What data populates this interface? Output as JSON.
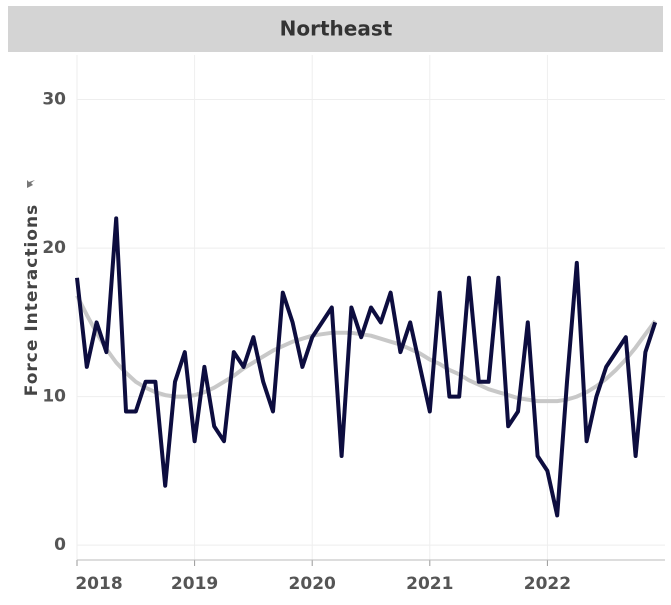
{
  "chart_data": {
    "type": "line",
    "title": "Northeast",
    "y_label": "Force Interactions",
    "x": [
      2018,
      2018.083,
      2018.167,
      2018.25,
      2018.333,
      2018.417,
      2018.5,
      2018.583,
      2018.667,
      2018.75,
      2018.833,
      2018.917,
      2019,
      2019.083,
      2019.167,
      2019.25,
      2019.333,
      2019.417,
      2019.5,
      2019.583,
      2019.667,
      2019.75,
      2019.833,
      2019.917,
      2020,
      2020.083,
      2020.167,
      2020.25,
      2020.333,
      2020.417,
      2020.5,
      2020.583,
      2020.667,
      2020.75,
      2020.833,
      2020.917,
      2021,
      2021.083,
      2021.167,
      2021.25,
      2021.333,
      2021.417,
      2021.5,
      2021.583,
      2021.667,
      2021.75,
      2021.833,
      2021.917,
      2022,
      2022.083,
      2022.167,
      2022.25,
      2022.333,
      2022.417,
      2022.5,
      2022.583,
      2022.667,
      2022.75,
      2022.833,
      2022.917
    ],
    "series": [
      {
        "color": "#c8c8c8",
        "values": [
          16.8,
          15.5,
          14.3,
          13.2,
          12.3,
          11.6,
          11.0,
          10.6,
          10.3,
          10.1,
          10.0,
          10.0,
          10.1,
          10.3,
          10.6,
          11.0,
          11.4,
          11.9,
          12.3,
          12.7,
          13.1,
          13.4,
          13.7,
          13.9,
          14.1,
          14.2,
          14.3,
          14.3,
          14.3,
          14.2,
          14.1,
          13.9,
          13.7,
          13.5,
          13.2,
          12.9,
          12.5,
          12.2,
          11.8,
          11.5,
          11.1,
          10.8,
          10.5,
          10.3,
          10.1,
          9.9,
          9.8,
          9.7,
          9.7,
          9.7,
          9.8,
          10.0,
          10.3,
          10.7,
          11.2,
          11.8,
          12.5,
          13.3,
          14.2,
          15.1
        ]
      },
      {
        "color": "#0d0d3f",
        "values": [
          18,
          12,
          15,
          13,
          22,
          9,
          9,
          11,
          11,
          4,
          11,
          13,
          7,
          12,
          8,
          7,
          13,
          12,
          14,
          11,
          9,
          17,
          15,
          12,
          14,
          15,
          16,
          6,
          16,
          14,
          16,
          15,
          17,
          13,
          15,
          12,
          9,
          17,
          10,
          10,
          18,
          11,
          11,
          18,
          8,
          9,
          15,
          6,
          5,
          2,
          11,
          19,
          7,
          10,
          12,
          13,
          14,
          6,
          13,
          15
        ]
      }
    ],
    "xlim": [
      2018,
      2023
    ],
    "xticks": [
      2018,
      2019,
      2020,
      2021,
      2022
    ],
    "ylim": [
      -1,
      33
    ],
    "yticks": [
      0,
      10,
      20,
      30
    ],
    "grid": true
  }
}
